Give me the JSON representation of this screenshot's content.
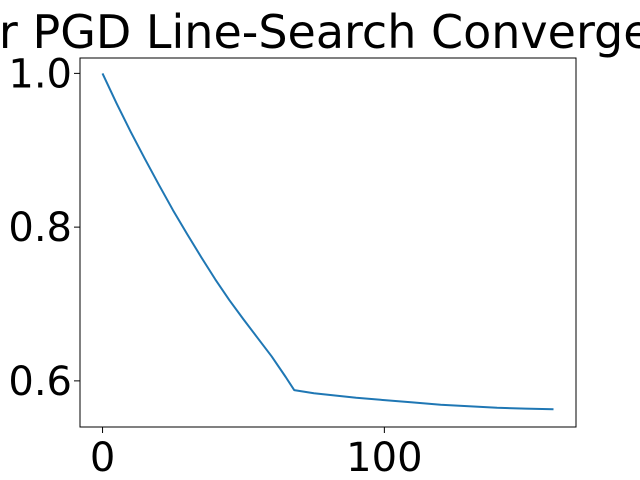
{
  "chart_data": {
    "type": "line",
    "title": "Error PGD Line-Search Convergence",
    "xlabel": "",
    "ylabel": "",
    "xlim": [
      -8,
      168
    ],
    "ylim": [
      0.54,
      1.02
    ],
    "xticks": [
      0,
      100
    ],
    "xtick_labels": [
      "0",
      "100"
    ],
    "yticks": [
      0.6,
      0.8,
      1.0
    ],
    "ytick_labels": [
      "0.6",
      "0.8",
      "1.0"
    ],
    "grid": false,
    "legend": "none",
    "series": [
      {
        "color": "#1f77b4",
        "x": [
          0,
          5,
          10,
          15,
          20,
          25,
          30,
          35,
          40,
          45,
          50,
          55,
          60,
          65,
          68,
          75,
          80,
          90,
          100,
          110,
          120,
          130,
          140,
          150,
          160
        ],
        "y": [
          1.0,
          0.961,
          0.924,
          0.889,
          0.855,
          0.822,
          0.791,
          0.761,
          0.732,
          0.705,
          0.68,
          0.656,
          0.632,
          0.605,
          0.588,
          0.584,
          0.582,
          0.578,
          0.575,
          0.572,
          0.569,
          0.567,
          0.565,
          0.564,
          0.563
        ]
      }
    ]
  }
}
